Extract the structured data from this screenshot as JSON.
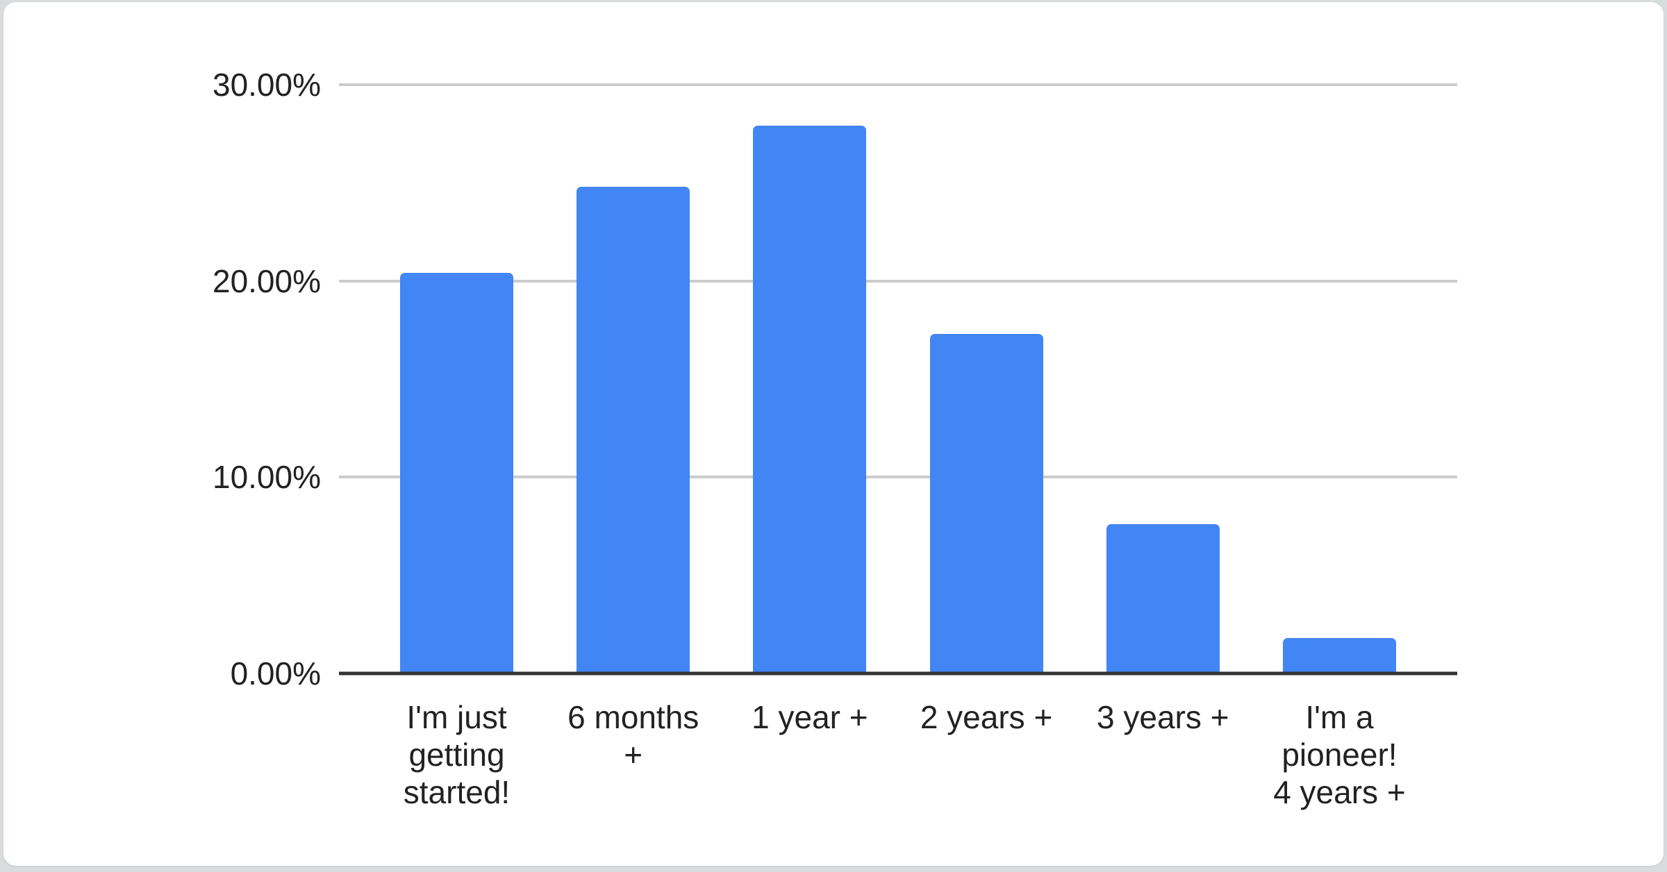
{
  "window": {
    "description": "White rounded card containing a single column chart on a light gray background"
  },
  "colors": {
    "page_bg": "#d9dcdd",
    "card_bg": "#ffffff",
    "bar_color": "#4285f4",
    "grid_color": "#cccccc",
    "axis_color": "#333333",
    "text_color": "#222222"
  },
  "chart_data": {
    "type": "bar",
    "title": "",
    "xlabel": "",
    "ylabel": "",
    "categories": [
      "I'm just getting started!",
      "6 months +",
      "1 year +",
      "2 years +",
      "3 years +",
      "I'm a pioneer! 4 years +"
    ],
    "tick_label_lines": [
      [
        "I'm just",
        "getting",
        "started!"
      ],
      [
        "6 months",
        "+"
      ],
      [
        "1 year +"
      ],
      [
        "2 years +"
      ],
      [
        "3 years +"
      ],
      [
        "I'm a",
        "pioneer!",
        "4 years +"
      ]
    ],
    "values": [
      20.4,
      24.8,
      27.9,
      17.3,
      7.6,
      1.8
    ],
    "value_unit": "percent",
    "ylim": [
      0,
      30
    ],
    "yticks": [
      {
        "value": 30,
        "label": "30.00%"
      },
      {
        "value": 20,
        "label": "20.00%"
      },
      {
        "value": 10,
        "label": "10.00%"
      },
      {
        "value": 0,
        "label": "0.00%"
      }
    ],
    "grid": true,
    "legend_position": "none",
    "bar_color": "#4285f4"
  }
}
